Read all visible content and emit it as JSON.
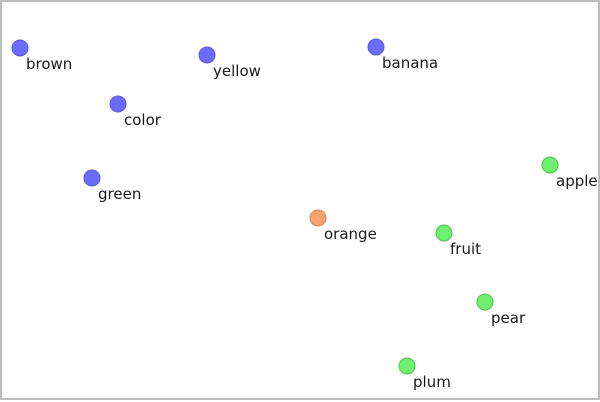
{
  "points": [
    {
      "label": "brown",
      "group": "color"
    },
    {
      "label": "yellow",
      "group": "color"
    },
    {
      "label": "banana",
      "group": "color"
    },
    {
      "label": "color",
      "group": "color"
    },
    {
      "label": "green",
      "group": "color"
    },
    {
      "label": "apple",
      "group": "fruit"
    },
    {
      "label": "orange",
      "group": "ambiguous"
    },
    {
      "label": "fruit",
      "group": "fruit"
    },
    {
      "label": "pear",
      "group": "fruit"
    },
    {
      "label": "plum",
      "group": "fruit"
    }
  ],
  "colors": {
    "color": "#6b6bff",
    "fruit": "#6ff06f",
    "ambiguous": "#f5a26f",
    "stroke_color": "#5a5ad6",
    "stroke_fruit": "#4fc24f",
    "stroke_ambiguous": "#d9875a"
  }
}
